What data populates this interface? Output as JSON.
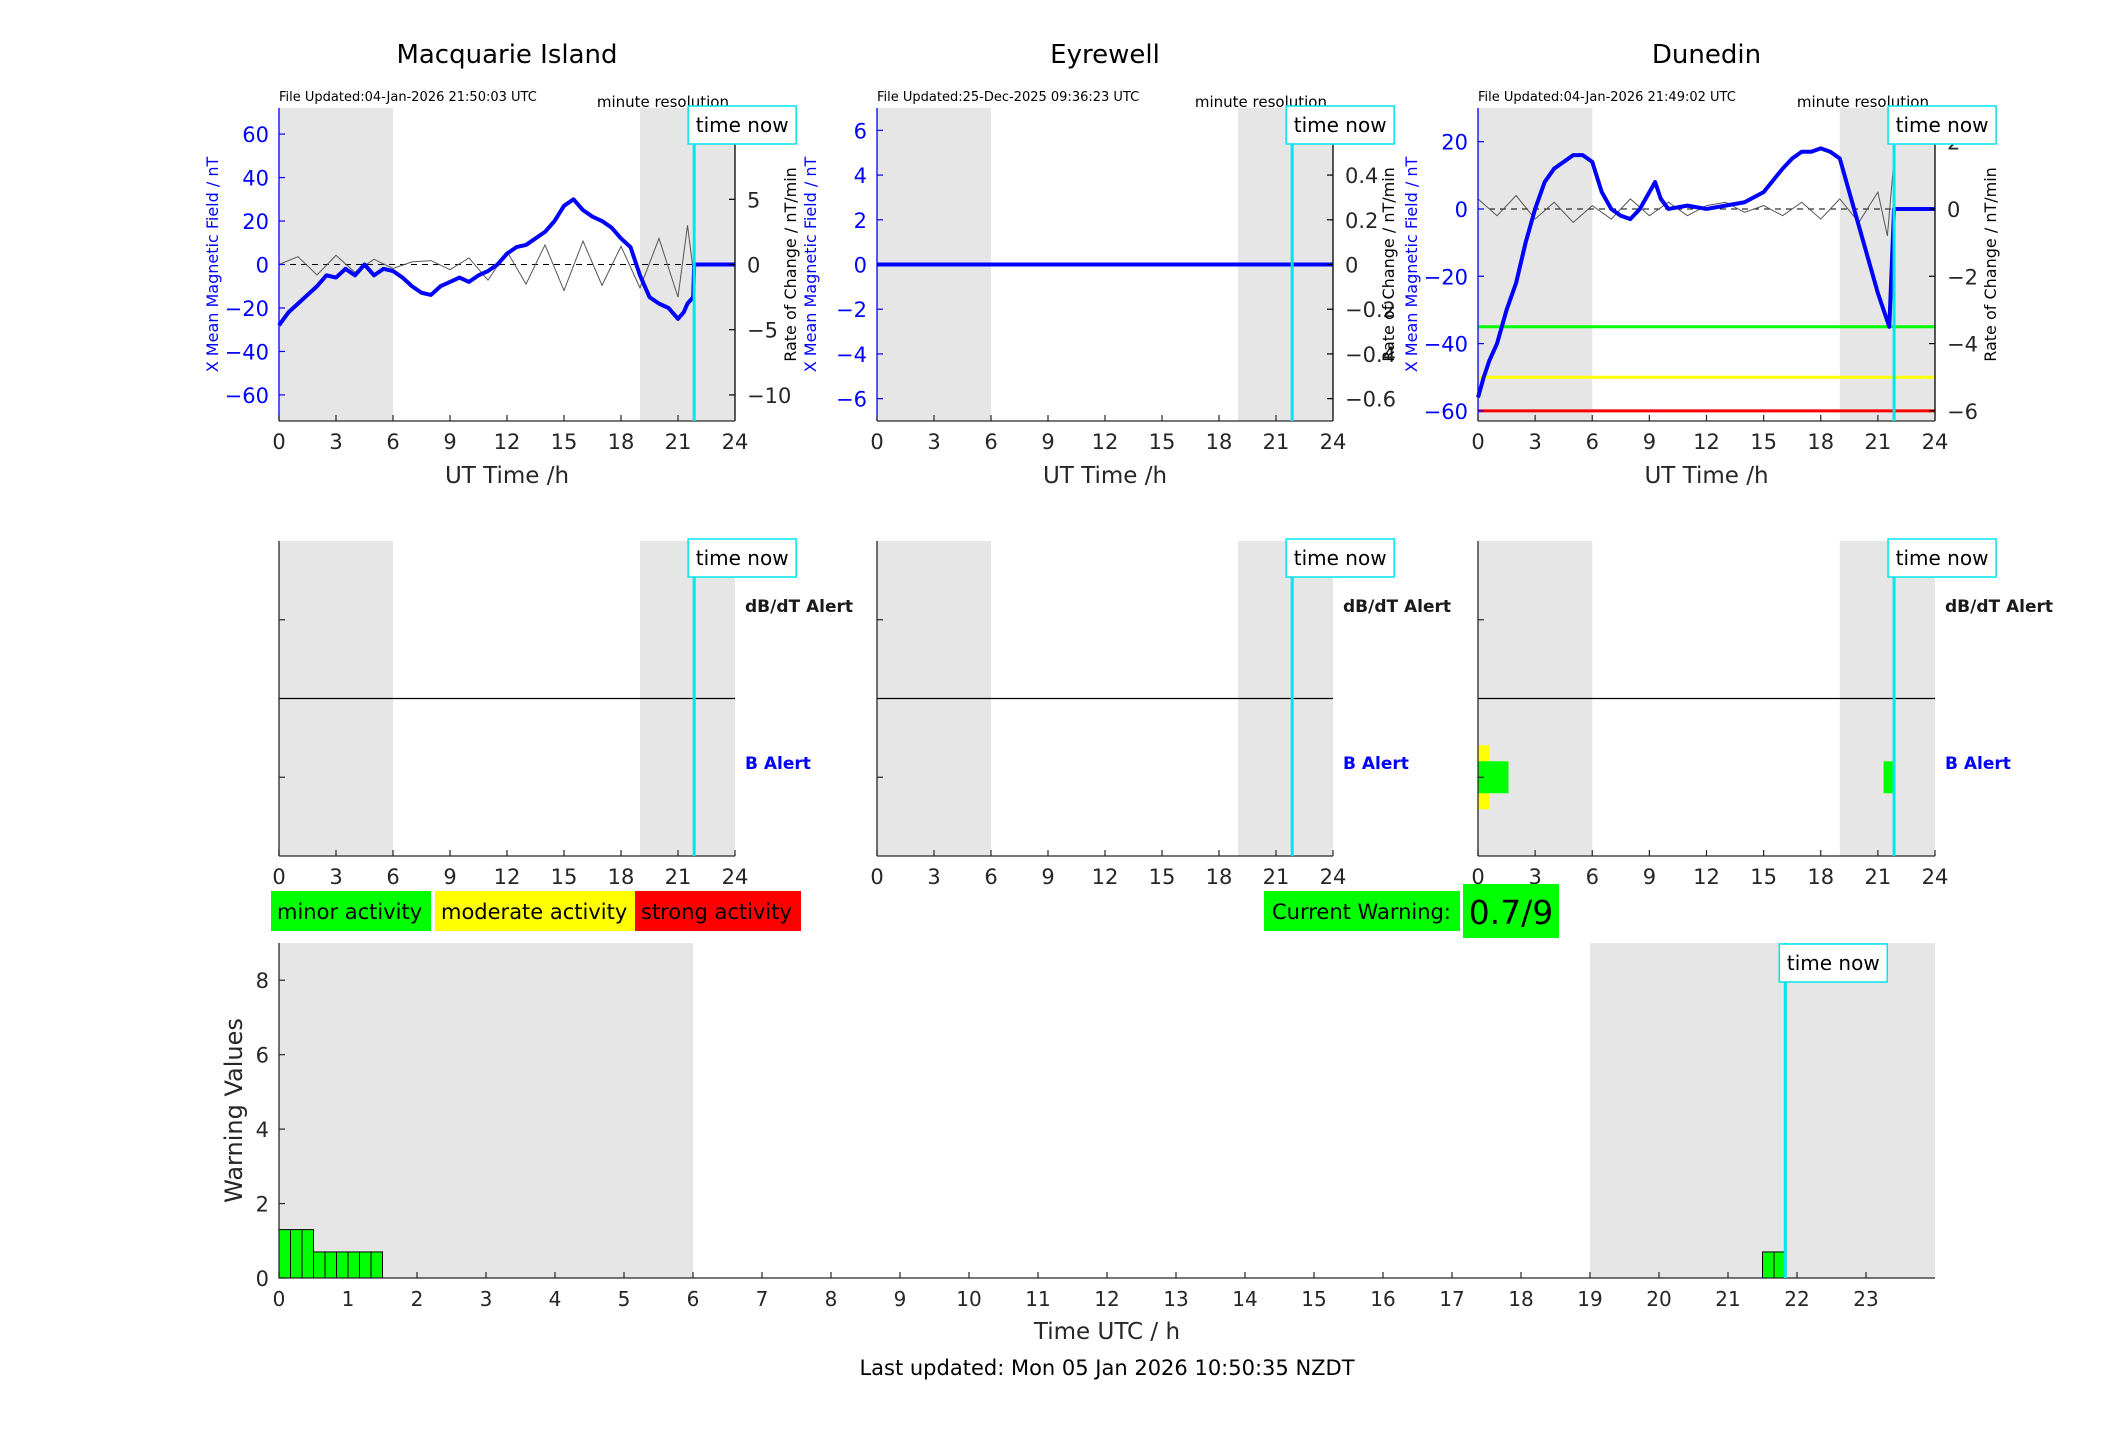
{
  "colors": {
    "shade": "#e6e6e6",
    "mag_line": "#0000ff",
    "now_line": "#00e5ee",
    "green": "#00ff00",
    "yellow": "#ffff00",
    "red": "#ff0000",
    "axis": "#262626",
    "rate_trace": "#555555"
  },
  "time_now_label": "time now",
  "resolution_label": "minute resolution",
  "xlabel_top": "UT Time /h",
  "ylabel_left": "X Mean Magnetic Field / nT",
  "ylabel_right": "Rate of Change / nT/min",
  "dbdt_alert_label": "dB/dT Alert",
  "b_alert_label": "B Alert",
  "legend": {
    "minor": "minor activity",
    "moderate": "moderate activity",
    "strong": "strong activity"
  },
  "current_warning": {
    "label": "Current Warning:",
    "value": "0.7/9"
  },
  "footer": "Last updated: Mon 05 Jan 2026 10:50:35 NZDT",
  "chart_data": [
    {
      "type": "line",
      "title": "Macquarie Island",
      "file_updated": "File Updated:04-Jan-2026 21:50:03 UTC",
      "xlabel": "UT Time /h",
      "ylabel": "X Mean Magnetic Field / nT",
      "y2label": "Rate of Change / nT/min",
      "xlim": [
        0,
        24
      ],
      "xticks": [
        0,
        3,
        6,
        9,
        12,
        15,
        18,
        21,
        24
      ],
      "ylim": [
        -72,
        72
      ],
      "yticks": [
        -60,
        -40,
        -20,
        0,
        20,
        40,
        60
      ],
      "y2lim": [
        -12,
        12
      ],
      "y2ticks": [
        -10,
        -5,
        0,
        5,
        10
      ],
      "night_shading": [
        [
          0,
          6
        ],
        [
          19,
          24
        ]
      ],
      "time_now": 21.85,
      "series": [
        {
          "role": "magnetic_field",
          "x": [
            0,
            0.5,
            1,
            1.5,
            2,
            2.5,
            3,
            3.5,
            4,
            4.5,
            5,
            5.5,
            6,
            6.5,
            7,
            7.5,
            8,
            8.5,
            9,
            9.5,
            10,
            10.5,
            11,
            11.5,
            12,
            12.5,
            13,
            13.5,
            14,
            14.5,
            15,
            15.5,
            16,
            16.5,
            17,
            17.5,
            18,
            18.5,
            19,
            19.5,
            20,
            20.5,
            21,
            21.3,
            21.5,
            21.8,
            21.85,
            24
          ],
          "values": [
            -28,
            -22,
            -18,
            -14,
            -10,
            -5,
            -6,
            -2,
            -5,
            0,
            -5,
            -2,
            -3,
            -6,
            -10,
            -13,
            -14,
            -10,
            -8,
            -6,
            -8,
            -5,
            -3,
            0,
            5,
            8,
            9,
            12,
            15,
            20,
            27,
            30,
            25,
            22,
            20,
            17,
            12,
            8,
            -5,
            -15,
            -18,
            -20,
            -25,
            -22,
            -18,
            -15,
            0,
            0
          ]
        },
        {
          "role": "rate_of_change",
          "x": [
            0,
            1,
            2,
            3,
            4,
            5,
            6,
            7,
            8,
            9,
            10,
            11,
            12,
            13,
            14,
            15,
            16,
            17,
            18,
            19,
            20,
            21,
            21.5,
            21.85
          ],
          "values": [
            0,
            0.6,
            -0.8,
            0.7,
            -0.6,
            0.4,
            -0.3,
            0.2,
            0.3,
            -0.4,
            0.5,
            -1.2,
            1.0,
            -1.5,
            1.5,
            -2.0,
            1.8,
            -1.6,
            1.4,
            -1.8,
            2.0,
            -2.5,
            3.0,
            -1.0
          ]
        }
      ]
    },
    {
      "type": "line",
      "title": "Eyrewell",
      "file_updated": "File Updated:25-Dec-2025 09:36:23 UTC",
      "xlabel": "UT Time /h",
      "ylabel": "X Mean Magnetic Field / nT",
      "y2label": "Rate of Change / nT/min",
      "xlim": [
        0,
        24
      ],
      "xticks": [
        0,
        3,
        6,
        9,
        12,
        15,
        18,
        21,
        24
      ],
      "ylim": [
        -7,
        7
      ],
      "yticks": [
        -6,
        -4,
        -2,
        0,
        2,
        4,
        6
      ],
      "y2lim": [
        -0.7,
        0.7
      ],
      "y2ticks": [
        -0.6,
        -0.4,
        -0.2,
        0,
        0.2,
        0.4,
        0.6
      ],
      "night_shading": [
        [
          0,
          6
        ],
        [
          19,
          24
        ]
      ],
      "time_now": 21.85,
      "series": [
        {
          "role": "magnetic_field",
          "x": [
            0,
            24
          ],
          "values": [
            0,
            0
          ]
        }
      ]
    },
    {
      "type": "line",
      "title": "Dunedin",
      "file_updated": "File Updated:04-Jan-2026 21:49:02 UTC",
      "xlabel": "UT Time /h",
      "ylabel": "X Mean Magnetic Field / nT",
      "y2label": "Rate of Change / nT/min",
      "xlim": [
        0,
        24
      ],
      "xticks": [
        0,
        3,
        6,
        9,
        12,
        15,
        18,
        21,
        24
      ],
      "ylim": [
        -63,
        30
      ],
      "yticks": [
        -60,
        -40,
        -20,
        0,
        20
      ],
      "y2lim": [
        -6.3,
        3
      ],
      "y2ticks": [
        -6,
        -4,
        -2,
        0,
        2
      ],
      "night_shading": [
        [
          0,
          6
        ],
        [
          19,
          24
        ]
      ],
      "time_now": 21.85,
      "thresholds": [
        {
          "level": -35,
          "color": "green"
        },
        {
          "level": -50,
          "color": "yellow"
        },
        {
          "level": -60,
          "color": "red"
        }
      ],
      "series": [
        {
          "role": "magnetic_field",
          "x": [
            0,
            0.3,
            0.6,
            1,
            1.5,
            2,
            2.5,
            3,
            3.5,
            4,
            4.5,
            5,
            5.5,
            6,
            6.5,
            7,
            7.5,
            8,
            8.5,
            9,
            9.3,
            9.6,
            10,
            11,
            12,
            13,
            14,
            15,
            16,
            16.5,
            17,
            17.5,
            18,
            18.5,
            19,
            19.5,
            20,
            20.5,
            21,
            21.3,
            21.6,
            21.85,
            24
          ],
          "values": [
            -56,
            -50,
            -45,
            -40,
            -30,
            -22,
            -10,
            0,
            8,
            12,
            14,
            16,
            16,
            14,
            5,
            0,
            -2,
            -3,
            0,
            5,
            8,
            3,
            0,
            1,
            0,
            1,
            2,
            5,
            12,
            15,
            17,
            17,
            18,
            17,
            15,
            5,
            -5,
            -15,
            -25,
            -30,
            -35,
            0,
            0
          ]
        },
        {
          "role": "rate_of_change",
          "x": [
            0,
            1,
            2,
            3,
            4,
            5,
            6,
            7,
            8,
            9,
            10,
            11,
            12,
            13,
            14,
            15,
            16,
            17,
            18,
            19,
            20,
            21,
            21.5,
            21.85
          ],
          "values": [
            0.3,
            -0.2,
            0.4,
            -0.3,
            0.2,
            -0.4,
            0.1,
            -0.3,
            0.3,
            -0.2,
            0.2,
            -0.2,
            0.1,
            0.2,
            -0.1,
            0.1,
            -0.2,
            0.2,
            -0.3,
            0.3,
            -0.4,
            0.5,
            -0.8,
            1.5
          ]
        }
      ]
    },
    {
      "type": "bar",
      "title": "",
      "station": "Macquarie Island",
      "xlim": [
        0,
        24
      ],
      "xticks": [
        0,
        3,
        6,
        9,
        12,
        15,
        18,
        21,
        24
      ],
      "night_shading": [
        [
          0,
          6
        ],
        [
          19,
          24
        ]
      ],
      "time_now": 21.85,
      "rows": [
        "dB/dT Alert",
        "B Alert"
      ],
      "alert_bars": []
    },
    {
      "type": "bar",
      "title": "",
      "station": "Eyrewell",
      "xlim": [
        0,
        24
      ],
      "xticks": [
        0,
        3,
        6,
        9,
        12,
        15,
        18,
        21,
        24
      ],
      "night_shading": [
        [
          0,
          6
        ],
        [
          19,
          24
        ]
      ],
      "time_now": 21.85,
      "rows": [
        "dB/dT Alert",
        "B Alert"
      ],
      "alert_bars": []
    },
    {
      "type": "bar",
      "title": "",
      "station": "Dunedin",
      "xlim": [
        0,
        24
      ],
      "xticks": [
        0,
        3,
        6,
        9,
        12,
        15,
        18,
        21,
        24
      ],
      "night_shading": [
        [
          0,
          6
        ],
        [
          19,
          24
        ]
      ],
      "time_now": 21.85,
      "rows": [
        "dB/dT Alert",
        "B Alert"
      ],
      "alert_bars": [
        {
          "row": "B Alert",
          "x0": 0,
          "x1": 0.6,
          "level": 2,
          "color": "yellow"
        },
        {
          "row": "B Alert",
          "x0": 0,
          "x1": 1.6,
          "level": 1,
          "color": "green"
        },
        {
          "row": "B Alert",
          "x0": 21.3,
          "x1": 21.9,
          "level": 1,
          "color": "green"
        }
      ]
    },
    {
      "type": "bar",
      "title": "",
      "xlabel": "Time UTC / h",
      "ylabel": "Warning Values",
      "xlim": [
        0,
        24
      ],
      "xticks": [
        0,
        1,
        2,
        3,
        4,
        5,
        6,
        7,
        8,
        9,
        10,
        11,
        12,
        13,
        14,
        15,
        16,
        17,
        18,
        19,
        20,
        21,
        22,
        23
      ],
      "ylim": [
        0,
        9
      ],
      "yticks": [
        0,
        2,
        4,
        6,
        8
      ],
      "night_shading": [
        [
          0,
          6
        ],
        [
          19,
          24
        ]
      ],
      "time_now": 21.83,
      "bar_width": 0.1667,
      "x": [
        0,
        0.1667,
        0.3333,
        0.5,
        0.6667,
        0.8333,
        1.0,
        1.1667,
        1.3333,
        21.5,
        21.6667
      ],
      "values": [
        1.3,
        1.3,
        1.3,
        0.7,
        0.7,
        0.7,
        0.7,
        0.7,
        0.7,
        0.7,
        0.7
      ]
    }
  ]
}
